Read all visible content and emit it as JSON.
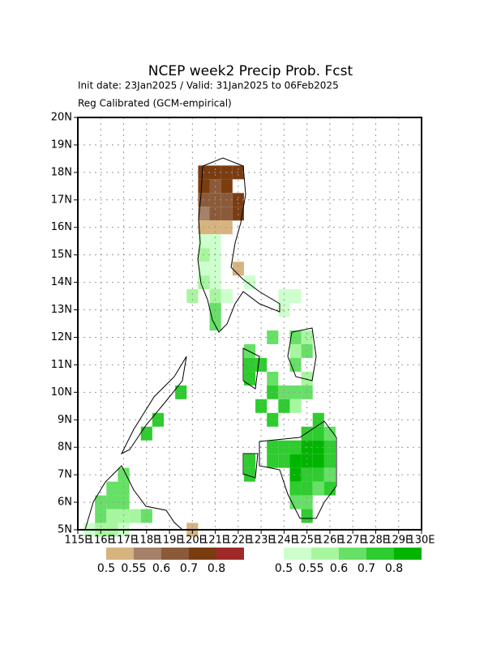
{
  "chart_data": {
    "type": "grid-map",
    "title": "NCEP week2 Precip Prob. Fcst",
    "subtitle": "Init date: 23Jan2025 / Valid: 31Jan2025 to 06Feb2025",
    "note": "Reg Calibrated (GCM-empirical)",
    "xlim": [
      115,
      130
    ],
    "ylim": [
      5,
      20
    ],
    "cell_size": 0.5,
    "grid": true,
    "xticks": [
      {
        "value": 115,
        "label": "115E"
      },
      {
        "value": 116,
        "label": "116E"
      },
      {
        "value": 117,
        "label": "117E"
      },
      {
        "value": 118,
        "label": "118E"
      },
      {
        "value": 119,
        "label": "119E"
      },
      {
        "value": 120,
        "label": "120E"
      },
      {
        "value": 121,
        "label": "121E"
      },
      {
        "value": 122,
        "label": "122E"
      },
      {
        "value": 123,
        "label": "123E"
      },
      {
        "value": 124,
        "label": "124E"
      },
      {
        "value": 125,
        "label": "125E"
      },
      {
        "value": 126,
        "label": "126E"
      },
      {
        "value": 127,
        "label": "127E"
      },
      {
        "value": 128,
        "label": "128E"
      },
      {
        "value": 129,
        "label": "129E"
      },
      {
        "value": 130,
        "label": "130E"
      }
    ],
    "yticks": [
      {
        "value": 5,
        "label": "5N"
      },
      {
        "value": 6,
        "label": "6N"
      },
      {
        "value": 7,
        "label": "7N"
      },
      {
        "value": 8,
        "label": "8N"
      },
      {
        "value": 9,
        "label": "9N"
      },
      {
        "value": 10,
        "label": "10N"
      },
      {
        "value": 11,
        "label": "11N"
      },
      {
        "value": 12,
        "label": "12N"
      },
      {
        "value": 13,
        "label": "13N"
      },
      {
        "value": 14,
        "label": "14N"
      },
      {
        "value": 15,
        "label": "15N"
      },
      {
        "value": 16,
        "label": "16N"
      },
      {
        "value": 17,
        "label": "17N"
      },
      {
        "value": 18,
        "label": "18N"
      },
      {
        "value": 19,
        "label": "19N"
      },
      {
        "value": 20,
        "label": "20N"
      }
    ],
    "legend_levels": [
      0.5,
      0.55,
      0.6,
      0.7,
      0.8
    ],
    "below_colors": [
      "#d6b37f",
      "#a5806a",
      "#8b5a3a",
      "#7a3d10",
      "#a02a2a"
    ],
    "above_colors": [
      "#ccffcc",
      "#a8f5a0",
      "#66e066",
      "#2ecc2e",
      "#00b400"
    ],
    "below": [
      [
        120.5,
        18,
        0.7
      ],
      [
        121,
        18,
        0.7
      ],
      [
        121.5,
        18,
        0.7
      ],
      [
        122,
        18,
        0.7
      ],
      [
        120.5,
        17.5,
        0.7
      ],
      [
        121,
        17.5,
        0.6
      ],
      [
        121.5,
        17.5,
        0.7
      ],
      [
        120.5,
        17,
        0.6
      ],
      [
        121,
        17,
        0.6
      ],
      [
        121.5,
        17,
        0.6
      ],
      [
        122,
        17,
        0.7
      ],
      [
        120.5,
        16.5,
        0.55
      ],
      [
        121,
        16.5,
        0.6
      ],
      [
        121.5,
        16.5,
        0.6
      ],
      [
        122,
        16.5,
        0.7
      ],
      [
        120.5,
        16,
        0.5
      ],
      [
        121,
        16,
        0.5
      ],
      [
        121.5,
        16,
        0.5
      ],
      [
        122,
        14.5,
        0.5
      ],
      [
        120,
        5,
        0.5
      ]
    ],
    "above": [
      [
        120.5,
        15.5,
        0.5
      ],
      [
        121,
        15.5,
        0.5
      ],
      [
        120.5,
        15,
        0.55
      ],
      [
        121,
        15,
        0.5
      ],
      [
        120.5,
        14.5,
        0.5
      ],
      [
        121,
        14.5,
        0.5
      ],
      [
        120.5,
        14,
        0.55
      ],
      [
        121,
        14,
        0.5
      ],
      [
        122.5,
        14,
        0.5
      ],
      [
        120,
        13.5,
        0.55
      ],
      [
        121,
        13.5,
        0.55
      ],
      [
        121.5,
        13.5,
        0.5
      ],
      [
        124,
        13.5,
        0.5
      ],
      [
        124.5,
        13.5,
        0.5
      ],
      [
        121,
        13,
        0.6
      ],
      [
        124,
        13,
        0.5
      ],
      [
        121,
        12.5,
        0.6
      ],
      [
        123.5,
        12,
        0.6
      ],
      [
        124.5,
        12,
        0.6
      ],
      [
        125,
        12,
        0.55
      ],
      [
        122.5,
        11.5,
        0.6
      ],
      [
        124.5,
        11.5,
        0.55
      ],
      [
        125,
        11.5,
        0.6
      ],
      [
        122.5,
        11,
        0.7
      ],
      [
        123,
        11,
        0.7
      ],
      [
        124.5,
        11,
        0.6
      ],
      [
        122.5,
        10.5,
        0.7
      ],
      [
        123.5,
        10.5,
        0.6
      ],
      [
        125,
        10.5,
        0.55
      ],
      [
        119.5,
        10,
        0.7
      ],
      [
        123.5,
        10,
        0.7
      ],
      [
        124,
        10,
        0.6
      ],
      [
        124.5,
        10,
        0.6
      ],
      [
        125,
        10,
        0.6
      ],
      [
        123,
        9.5,
        0.7
      ],
      [
        124,
        9.5,
        0.7
      ],
      [
        124.5,
        9.5,
        0.55
      ],
      [
        118.5,
        9,
        0.7
      ],
      [
        123.5,
        9,
        0.7
      ],
      [
        125.5,
        9,
        0.7
      ],
      [
        118,
        8.5,
        0.7
      ],
      [
        125,
        8.5,
        0.7
      ],
      [
        125.5,
        8.5,
        0.7
      ],
      [
        126,
        8.5,
        0.6
      ],
      [
        123.5,
        8,
        0.7
      ],
      [
        124,
        8,
        0.7
      ],
      [
        124.5,
        8,
        0.7
      ],
      [
        125,
        8,
        0.8
      ],
      [
        125.5,
        8,
        0.8
      ],
      [
        126,
        8,
        0.7
      ],
      [
        122.5,
        7.5,
        0.7
      ],
      [
        123.5,
        7.5,
        0.7
      ],
      [
        124,
        7.5,
        0.7
      ],
      [
        124.5,
        7.5,
        0.8
      ],
      [
        125,
        7.5,
        0.8
      ],
      [
        125.5,
        7.5,
        0.8
      ],
      [
        126,
        7.5,
        0.7
      ],
      [
        117,
        7,
        0.6
      ],
      [
        122.5,
        7,
        0.7
      ],
      [
        124.5,
        7,
        0.8
      ],
      [
        125,
        7,
        0.7
      ],
      [
        125.5,
        7,
        0.7
      ],
      [
        126,
        7,
        0.6
      ],
      [
        116.5,
        6.5,
        0.6
      ],
      [
        117,
        6.5,
        0.6
      ],
      [
        124.5,
        6.5,
        0.7
      ],
      [
        125,
        6.5,
        0.7
      ],
      [
        125.5,
        6.5,
        0.6
      ],
      [
        126,
        6.5,
        0.7
      ],
      [
        116,
        6,
        0.6
      ],
      [
        116.5,
        6,
        0.6
      ],
      [
        117,
        6,
        0.6
      ],
      [
        124.5,
        6,
        0.6
      ],
      [
        125,
        6,
        0.6
      ],
      [
        116,
        5.5,
        0.6
      ],
      [
        116.5,
        5.5,
        0.55
      ],
      [
        117,
        5.5,
        0.55
      ],
      [
        117.5,
        5.5,
        0.55
      ],
      [
        118,
        5.5,
        0.6
      ],
      [
        125,
        5.5,
        0.7
      ],
      [
        115.5,
        5,
        0.5
      ],
      [
        116,
        5,
        0.55
      ],
      [
        116.5,
        5,
        0.55
      ],
      [
        117,
        5,
        0.5
      ]
    ]
  }
}
